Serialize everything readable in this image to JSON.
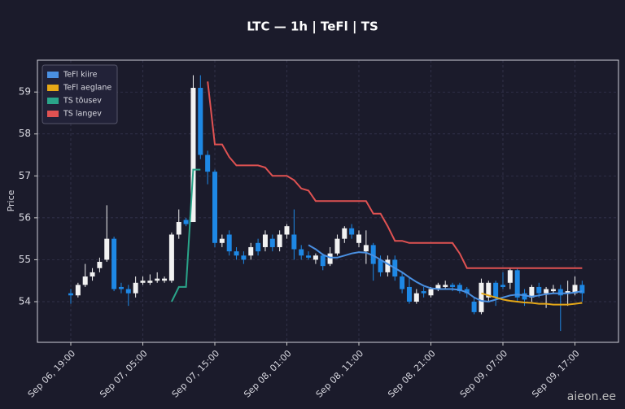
{
  "chart_data": {
    "type": "candlestick",
    "title": "LTC — 1h  |  TeFl  |  TS",
    "ylabel": "Price",
    "watermark": "aieon.ee",
    "x": [
      "Sep 06, 19:00",
      "Sep 06, 20:00",
      "Sep 06, 21:00",
      "Sep 06, 22:00",
      "Sep 06, 23:00",
      "Sep 07, 00:00",
      "Sep 07, 01:00",
      "Sep 07, 02:00",
      "Sep 07, 03:00",
      "Sep 07, 04:00",
      "Sep 07, 05:00",
      "Sep 07, 06:00",
      "Sep 07, 07:00",
      "Sep 07, 08:00",
      "Sep 07, 09:00",
      "Sep 07, 10:00",
      "Sep 07, 11:00",
      "Sep 07, 12:00",
      "Sep 07, 13:00",
      "Sep 07, 14:00",
      "Sep 07, 15:00",
      "Sep 07, 16:00",
      "Sep 07, 17:00",
      "Sep 07, 18:00",
      "Sep 07, 19:00",
      "Sep 07, 20:00",
      "Sep 07, 21:00",
      "Sep 07, 22:00",
      "Sep 07, 23:00",
      "Sep 08, 00:00",
      "Sep 08, 01:00",
      "Sep 08, 02:00",
      "Sep 08, 03:00",
      "Sep 08, 04:00",
      "Sep 08, 05:00",
      "Sep 08, 06:00",
      "Sep 08, 07:00",
      "Sep 08, 08:00",
      "Sep 08, 09:00",
      "Sep 08, 10:00",
      "Sep 08, 11:00",
      "Sep 08, 12:00",
      "Sep 08, 13:00",
      "Sep 08, 14:00",
      "Sep 08, 15:00",
      "Sep 08, 16:00",
      "Sep 08, 17:00",
      "Sep 08, 18:00",
      "Sep 08, 19:00",
      "Sep 08, 20:00",
      "Sep 08, 21:00",
      "Sep 08, 22:00",
      "Sep 08, 23:00",
      "Sep 09, 00:00",
      "Sep 09, 01:00",
      "Sep 09, 02:00",
      "Sep 09, 03:00",
      "Sep 09, 04:00",
      "Sep 09, 05:00",
      "Sep 09, 06:00",
      "Sep 09, 07:00",
      "Sep 09, 08:00",
      "Sep 09, 09:00",
      "Sep 09, 10:00",
      "Sep 09, 11:00",
      "Sep 09, 12:00",
      "Sep 09, 13:00",
      "Sep 09, 14:00",
      "Sep 09, 15:00",
      "Sep 09, 16:00",
      "Sep 09, 17:00",
      "Sep 09, 18:00"
    ],
    "open": [
      54.2,
      54.15,
      54.4,
      54.6,
      54.8,
      55.0,
      55.5,
      54.35,
      54.3,
      54.2,
      54.45,
      54.45,
      54.5,
      54.5,
      54.5,
      55.6,
      55.95,
      55.9,
      59.1,
      57.5,
      57.1,
      55.4,
      55.6,
      55.2,
      55.1,
      55.1,
      55.4,
      55.3,
      55.5,
      55.3,
      55.6,
      55.6,
      55.25,
      55.1,
      55.0,
      55.1,
      54.9,
      55.15,
      55.5,
      55.75,
      55.4,
      55.2,
      55.35,
      55.0,
      54.7,
      55.0,
      54.6,
      54.35,
      54.0,
      54.25,
      54.15,
      54.3,
      54.35,
      54.4,
      54.4,
      54.3,
      54.0,
      53.75,
      54.1,
      54.45,
      54.4,
      54.45,
      54.75,
      54.2,
      54.1,
      54.35,
      54.2,
      54.25,
      54.3,
      54.2,
      54.2,
      54.4
    ],
    "high": [
      54.3,
      54.45,
      54.9,
      54.8,
      55.05,
      56.3,
      55.55,
      54.45,
      54.4,
      54.6,
      54.6,
      54.65,
      54.7,
      54.6,
      55.65,
      56.2,
      56.0,
      59.4,
      59.4,
      57.6,
      57.15,
      55.6,
      55.7,
      55.3,
      55.2,
      55.4,
      55.5,
      55.7,
      55.6,
      55.7,
      55.85,
      56.2,
      55.35,
      55.2,
      55.15,
      55.15,
      55.3,
      55.6,
      55.8,
      55.85,
      55.7,
      55.7,
      55.4,
      55.1,
      55.1,
      55.1,
      54.7,
      54.6,
      54.3,
      54.35,
      54.35,
      54.45,
      54.5,
      54.45,
      54.45,
      54.35,
      54.1,
      54.55,
      54.5,
      54.5,
      54.7,
      54.8,
      54.8,
      54.3,
      54.4,
      54.45,
      54.35,
      54.4,
      54.4,
      54.5,
      54.6,
      54.5
    ],
    "low": [
      53.95,
      54.1,
      54.35,
      54.5,
      54.7,
      54.95,
      54.25,
      54.2,
      53.9,
      54.1,
      54.4,
      54.4,
      54.45,
      54.45,
      54.45,
      55.5,
      55.8,
      55.95,
      57.4,
      56.8,
      55.3,
      55.3,
      55.1,
      55.0,
      54.9,
      55.0,
      55.1,
      55.2,
      55.2,
      55.2,
      55.5,
      55.0,
      55.0,
      55.0,
      54.9,
      54.75,
      54.85,
      55.1,
      55.4,
      55.5,
      55.3,
      54.9,
      54.5,
      54.6,
      54.6,
      54.5,
      54.2,
      53.95,
      53.95,
      54.1,
      54.1,
      54.25,
      54.3,
      54.25,
      54.2,
      54.1,
      53.7,
      53.7,
      54.0,
      53.9,
      54.3,
      54.3,
      54.0,
      53.9,
      54.0,
      54.1,
      53.85,
      54.2,
      53.3,
      53.9,
      54.15,
      54.0
    ],
    "close": [
      54.15,
      54.4,
      54.6,
      54.7,
      54.95,
      55.5,
      54.3,
      54.3,
      54.2,
      54.45,
      54.5,
      54.5,
      54.55,
      54.55,
      55.6,
      55.9,
      55.85,
      59.1,
      57.5,
      57.1,
      55.4,
      55.5,
      55.2,
      55.1,
      55.0,
      55.3,
      55.2,
      55.6,
      55.3,
      55.6,
      55.8,
      55.25,
      55.1,
      55.05,
      55.1,
      54.85,
      55.15,
      55.5,
      55.75,
      55.6,
      55.6,
      55.35,
      54.9,
      54.7,
      55.0,
      54.6,
      54.3,
      54.0,
      54.2,
      54.2,
      54.3,
      54.4,
      54.4,
      54.35,
      54.25,
      54.2,
      53.75,
      54.45,
      54.45,
      54.1,
      54.35,
      54.75,
      54.1,
      54.05,
      54.35,
      54.2,
      54.3,
      54.3,
      54.15,
      54.25,
      54.4,
      54.2
    ],
    "up_color": "#f2f2f2",
    "down_color": "#1e88e5",
    "series": [
      {
        "name": "TeFl kiire",
        "color": "#4a90e2",
        "values": [
          null,
          null,
          null,
          null,
          null,
          null,
          null,
          null,
          null,
          null,
          null,
          null,
          null,
          null,
          null,
          null,
          null,
          null,
          null,
          null,
          null,
          null,
          null,
          null,
          null,
          null,
          null,
          null,
          null,
          null,
          null,
          null,
          null,
          55.35,
          55.25,
          55.12,
          55.05,
          55.05,
          55.1,
          55.15,
          55.18,
          55.17,
          55.1,
          55.0,
          54.9,
          54.8,
          54.7,
          54.58,
          54.47,
          54.38,
          54.32,
          54.3,
          54.3,
          54.3,
          54.28,
          54.22,
          54.1,
          54.02,
          54.0,
          54.05,
          54.1,
          54.15,
          54.17,
          54.15,
          54.12,
          54.15,
          54.18,
          54.2,
          54.2,
          54.2,
          54.22,
          54.25
        ]
      },
      {
        "name": "TeFl aeglane",
        "color": "#e6a817",
        "values": [
          null,
          null,
          null,
          null,
          null,
          null,
          null,
          null,
          null,
          null,
          null,
          null,
          null,
          null,
          null,
          null,
          null,
          null,
          null,
          null,
          null,
          null,
          null,
          null,
          null,
          null,
          null,
          null,
          null,
          null,
          null,
          null,
          null,
          null,
          null,
          null,
          null,
          null,
          null,
          null,
          null,
          null,
          null,
          null,
          null,
          null,
          null,
          null,
          null,
          null,
          null,
          null,
          null,
          null,
          null,
          null,
          null,
          54.2,
          54.15,
          54.1,
          54.05,
          54.02,
          54.0,
          53.98,
          53.97,
          53.95,
          53.95,
          53.93,
          53.93,
          53.93,
          53.95,
          53.97
        ]
      },
      {
        "name": "TS tõusev",
        "color": "#2aa58a",
        "values": [
          null,
          null,
          null,
          null,
          null,
          null,
          null,
          null,
          null,
          null,
          null,
          null,
          null,
          null,
          54.0,
          54.35,
          54.35,
          57.15,
          57.15,
          null,
          null,
          null,
          null,
          null,
          null,
          null,
          null,
          null,
          null,
          null,
          null,
          null,
          null,
          null,
          null,
          null,
          null,
          null,
          null,
          null,
          null,
          null,
          null,
          null,
          null,
          null,
          null,
          null,
          null,
          null,
          null,
          null,
          null,
          null,
          null,
          null,
          null,
          null,
          null,
          null,
          null,
          null,
          null,
          null,
          null,
          null,
          null,
          null,
          null,
          null,
          null,
          null
        ]
      },
      {
        "name": "TS langev",
        "color": "#e05252",
        "values": [
          null,
          null,
          null,
          null,
          null,
          null,
          null,
          null,
          null,
          null,
          null,
          null,
          null,
          null,
          null,
          null,
          null,
          null,
          null,
          59.25,
          57.75,
          57.75,
          57.45,
          57.25,
          57.25,
          57.25,
          57.25,
          57.2,
          57.0,
          57.0,
          57.0,
          56.9,
          56.7,
          56.65,
          56.4,
          56.4,
          56.4,
          56.4,
          56.4,
          56.4,
          56.4,
          56.4,
          56.1,
          56.1,
          55.8,
          55.45,
          55.45,
          55.4,
          55.4,
          55.4,
          55.4,
          55.4,
          55.4,
          55.4,
          55.15,
          54.8,
          54.8,
          54.8,
          54.8,
          54.8,
          54.8,
          54.8,
          54.8,
          54.8,
          54.8,
          54.8,
          54.8,
          54.8,
          54.8,
          54.8,
          54.8,
          54.8
        ]
      }
    ],
    "ylim": [
      53.03,
      59.76
    ],
    "yticks": [
      54,
      55,
      56,
      57,
      58,
      59
    ],
    "xticks": [
      "Sep 06, 19:00",
      "Sep 07, 05:00",
      "Sep 07, 15:00",
      "Sep 08, 01:00",
      "Sep 08, 11:00",
      "Sep 08, 21:00",
      "Sep 09, 07:00",
      "Sep 09, 17:00"
    ],
    "grid": true,
    "legend": "upper left"
  }
}
